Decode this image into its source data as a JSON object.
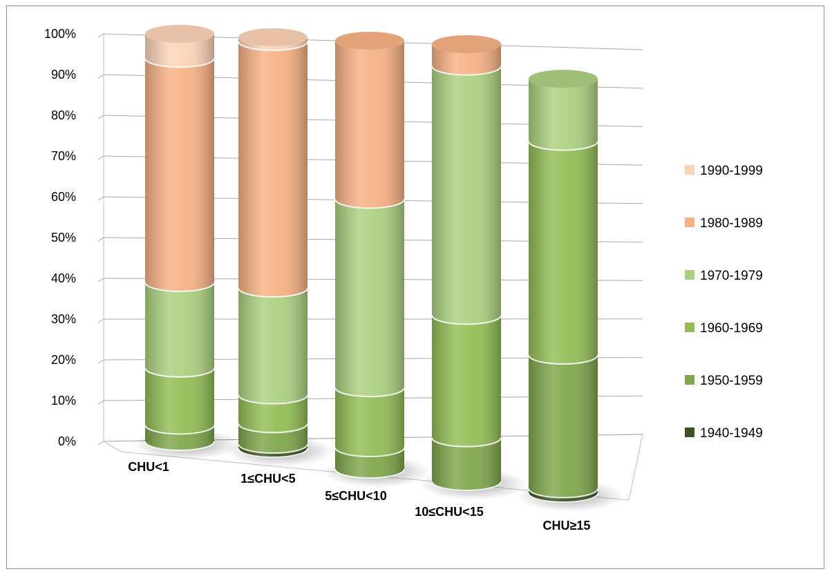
{
  "chart_data": {
    "type": "bar",
    "stacked": true,
    "percent_stacked": true,
    "style": "3d-cylinder",
    "title": "",
    "xlabel": "",
    "ylabel": "",
    "ylim": [
      0,
      100
    ],
    "yticks": [
      "0%",
      "10%",
      "20%",
      "30%",
      "40%",
      "50%",
      "60%",
      "70%",
      "80%",
      "90%",
      "100%"
    ],
    "grid": true,
    "legend_position": "right",
    "categories": [
      "CHU<1",
      "1≤CHU<5",
      "5≤CHU<10",
      "10≤CHU<15",
      "CHU≥15"
    ],
    "series": [
      {
        "name": "1940-1949",
        "color": "#3b5320",
        "values": [
          0,
          1,
          0,
          0,
          1
        ]
      },
      {
        "name": "1950-1959",
        "color": "#7ea64a",
        "values": [
          4,
          5,
          5,
          10,
          30
        ]
      },
      {
        "name": "1960-1969",
        "color": "#92bd55",
        "values": [
          14,
          7,
          14,
          28,
          48
        ]
      },
      {
        "name": "1970-1979",
        "color": "#acd07f",
        "values": [
          21,
          26,
          44,
          57,
          14
        ]
      },
      {
        "name": "1980-1989",
        "color": "#f7b183",
        "values": [
          55,
          60,
          37,
          5,
          0
        ]
      },
      {
        "name": "1990-1999",
        "color": "#fbd3b7",
        "values": [
          6,
          1,
          0,
          0,
          0
        ]
      }
    ]
  }
}
